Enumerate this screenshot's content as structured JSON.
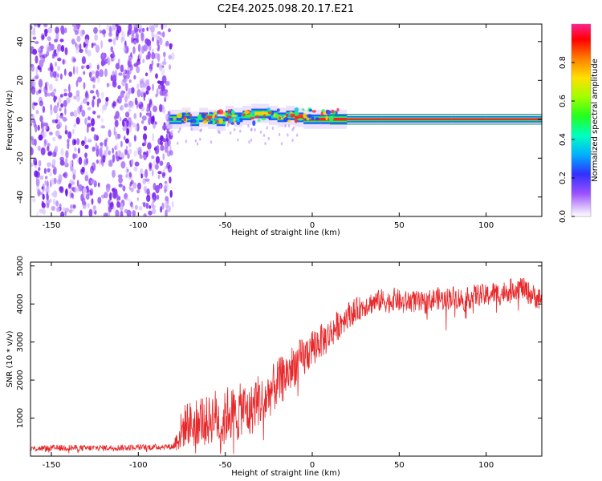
{
  "title": "C2E4.2025.098.20.17.E21",
  "chart_data": [
    {
      "type": "heatmap",
      "xlabel": "Height of straight line (km)",
      "ylabel": "Frequency (Hz)",
      "xlim": [
        -162,
        132
      ],
      "ylim": [
        -50,
        49
      ],
      "xticks": [
        -150,
        -100,
        -50,
        0,
        50,
        100
      ],
      "yticks": [
        -40,
        -20,
        0,
        20,
        40
      ],
      "noise_region_x": [
        -162,
        -82
      ],
      "signal_track": {
        "x": [
          -82,
          -75,
          -70,
          -65,
          -60,
          -55,
          -50,
          -45,
          -40,
          -35,
          -30,
          -25,
          -20,
          -15,
          -10,
          -5,
          0,
          5,
          10,
          15,
          20,
          40,
          60,
          80,
          100,
          120,
          132
        ],
        "center_hz": [
          0,
          1,
          -1,
          1,
          0,
          -1,
          2,
          1,
          2,
          3,
          3,
          2,
          1,
          2,
          1,
          0,
          0,
          0,
          0,
          0,
          0,
          0,
          0,
          0,
          0,
          0,
          0
        ],
        "amplitude": [
          0.5,
          0.5,
          0.55,
          0.55,
          0.6,
          0.55,
          0.65,
          0.6,
          0.7,
          0.75,
          0.8,
          0.75,
          0.8,
          0.85,
          0.85,
          0.9,
          0.9,
          0.9,
          0.95,
          0.95,
          0.95,
          1.0,
          1.0,
          1.0,
          1.0,
          1.0,
          1.0
        ]
      },
      "colorbar": {
        "label": "Normalized spectral amplitude",
        "range": [
          0,
          1
        ],
        "ticks": [
          "0.0",
          "0.2",
          "0.4",
          "0.6",
          "0.8"
        ],
        "colors": [
          "#ffffff",
          "#c8a8ff",
          "#7a20ff",
          "#2040ff",
          "#00c8ff",
          "#00ff80",
          "#40ff00",
          "#c8ff00",
          "#ffd000",
          "#ff6000",
          "#ff0000",
          "#ff2080"
        ]
      }
    },
    {
      "type": "line",
      "xlabel": "Height of straight line (km)",
      "ylabel": "SNR (10 * v/v)",
      "xlim": [
        -162,
        132
      ],
      "ylim": [
        0,
        5100
      ],
      "xticks": [
        -150,
        -100,
        -50,
        0,
        50,
        100
      ],
      "yticks": [
        1000,
        2000,
        3000,
        4000,
        5000
      ],
      "color": "#e8282a",
      "x": [
        -162,
        -150,
        -140,
        -130,
        -120,
        -110,
        -100,
        -90,
        -80,
        -76,
        -72,
        -68,
        -64,
        -60,
        -56,
        -52,
        -48,
        -44,
        -40,
        -36,
        -32,
        -28,
        -24,
        -20,
        -16,
        -12,
        -8,
        -4,
        0,
        4,
        8,
        12,
        16,
        20,
        24,
        28,
        32,
        36,
        40,
        44,
        48,
        52,
        56,
        60,
        64,
        68,
        72,
        76,
        80,
        84,
        88,
        92,
        96,
        100,
        104,
        108,
        112,
        116,
        120,
        124,
        128,
        132
      ],
      "y": [
        200,
        210,
        220,
        210,
        220,
        225,
        230,
        240,
        250,
        600,
        900,
        800,
        1000,
        900,
        1100,
        800,
        1200,
        1000,
        1300,
        1100,
        1500,
        1400,
        1700,
        1900,
        2100,
        2300,
        2500,
        2600,
        2900,
        3000,
        3100,
        3300,
        3500,
        3700,
        3800,
        3900,
        4000,
        4050,
        4100,
        4050,
        4150,
        4000,
        4100,
        4050,
        4000,
        4100,
        4150,
        4100,
        4200,
        4150,
        4100,
        4200,
        4250,
        4200,
        4300,
        4250,
        4350,
        4400,
        4450,
        4300,
        4200,
        4100
      ],
      "noise_amplitude": [
        80,
        80,
        80,
        80,
        80,
        80,
        80,
        80,
        80,
        500,
        600,
        600,
        650,
        650,
        700,
        700,
        750,
        750,
        700,
        700,
        700,
        700,
        650,
        650,
        600,
        600,
        550,
        550,
        500,
        450,
        450,
        400,
        400,
        350,
        350,
        300,
        300,
        300,
        300,
        300,
        300,
        300,
        300,
        300,
        300,
        300,
        300,
        300,
        300,
        300,
        300,
        300,
        300,
        300,
        300,
        300,
        300,
        300,
        300,
        300,
        300,
        300
      ]
    }
  ]
}
